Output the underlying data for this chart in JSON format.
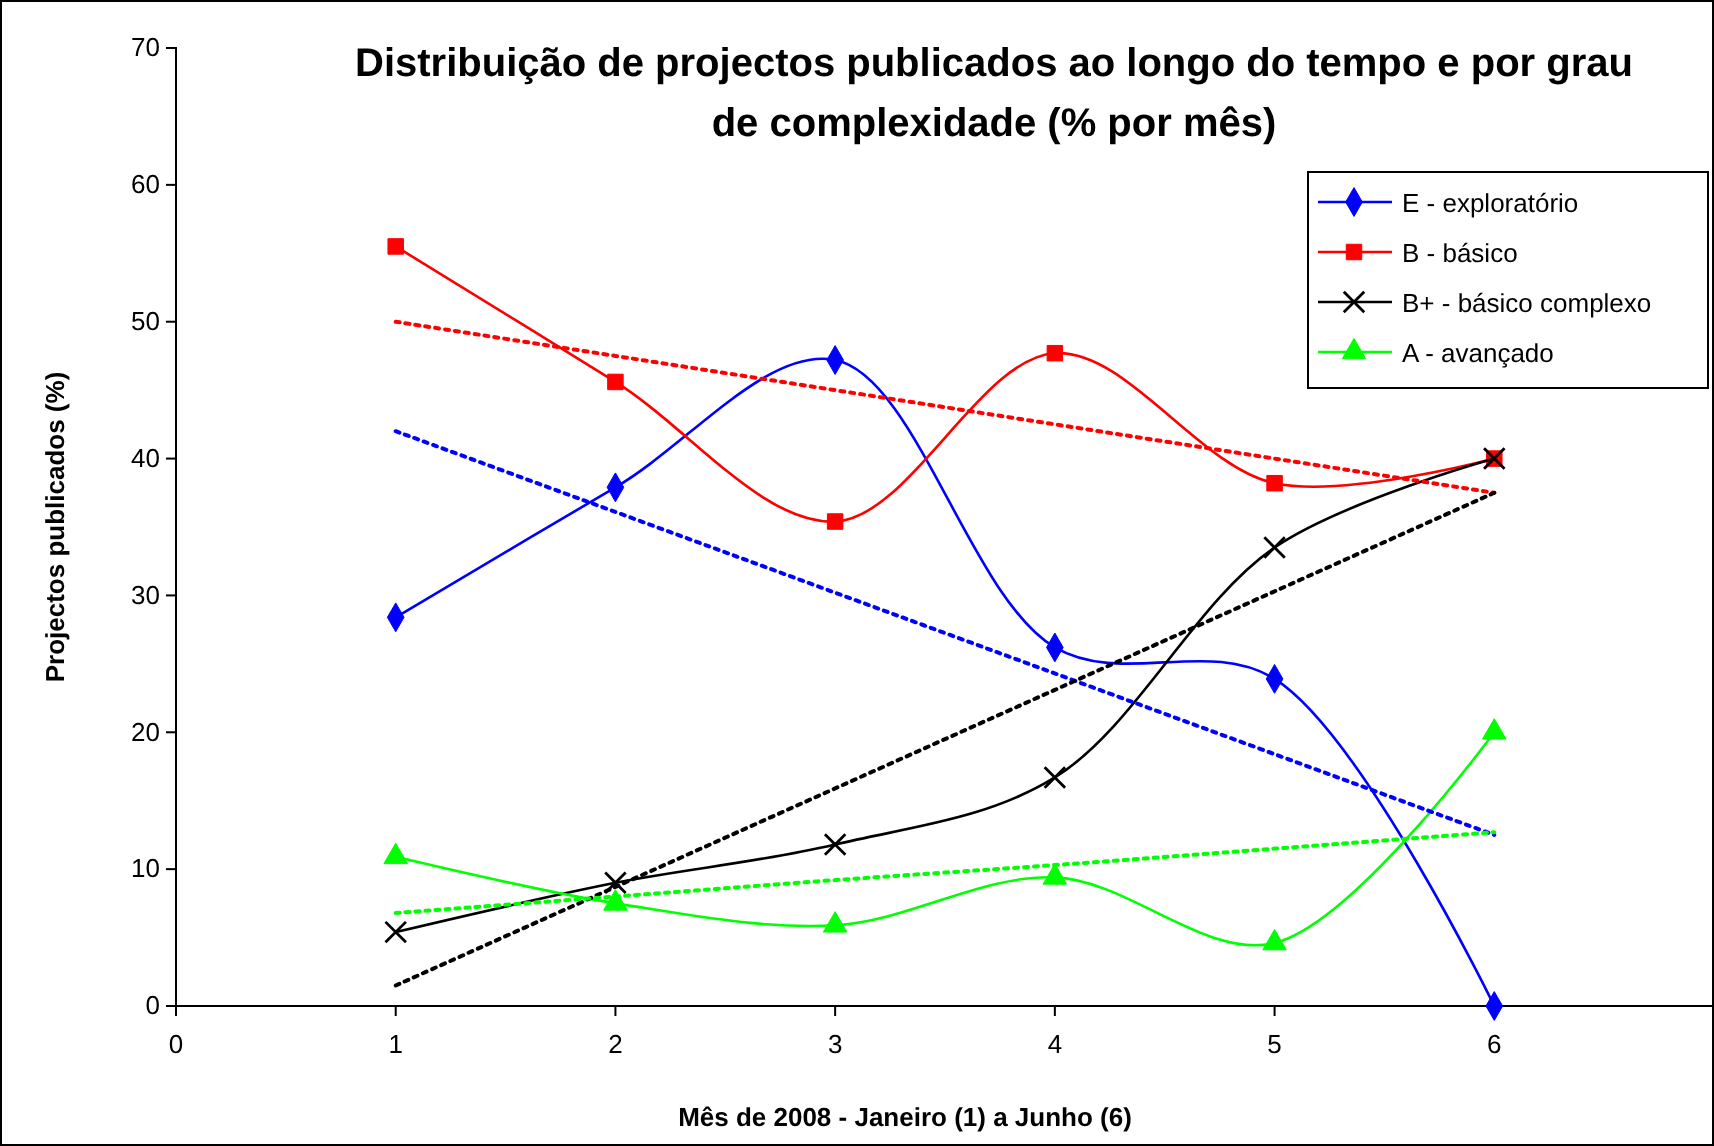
{
  "chart_data": {
    "type": "line",
    "title": "Distribuição de projectos publicados ao longo do tempo e por grau de complexidade (% por mês)",
    "xlabel": "Mês de 2008 - Janeiro (1) a Junho (6)",
    "ylabel": "Projectos publicados (%)",
    "x": [
      1,
      2,
      3,
      4,
      5,
      6
    ],
    "series": [
      {
        "name": "E - exploratório",
        "color": "#0000ff",
        "marker": "diamond",
        "values": [
          28.4,
          37.9,
          47.2,
          26.2,
          23.9,
          0
        ]
      },
      {
        "name": "B - básico",
        "color": "#ff0000",
        "marker": "square",
        "values": [
          55.5,
          45.6,
          35.4,
          47.7,
          38.2,
          40.0
        ]
      },
      {
        "name": "B+ - básico complexo",
        "color": "#000000",
        "marker": "cross",
        "values": [
          5.4,
          9.0,
          11.8,
          16.7,
          33.5,
          40.0
        ]
      },
      {
        "name": "A - avançado",
        "color": "#00ff00",
        "marker": "triangle",
        "values": [
          10.9,
          7.5,
          5.9,
          9.4,
          4.6,
          20.0
        ]
      },
      {
        "type": "line",
        "color": "#0000ff",
        "marker": "none",
        "line_style": "dotted",
        "values": [
          42.0,
          36.1,
          30.2,
          24.3,
          18.4,
          12.5
        ]
      },
      {
        "type": "line",
        "color": "#ff0000",
        "marker": "none",
        "line_style": "dotted",
        "values": [
          50.0,
          47.5,
          45.0,
          42.5,
          40.0,
          37.5
        ]
      },
      {
        "type": "line",
        "color": "#000000",
        "marker": "none",
        "line_style": "dotted",
        "values": [
          1.5,
          8.7,
          15.9,
          23.1,
          30.3,
          37.5
        ]
      },
      {
        "type": "line",
        "color": "#00ff00",
        "marker": "none",
        "line_style": "dotted",
        "values": [
          6.8,
          8.0,
          9.2,
          10.3,
          11.5,
          12.7
        ]
      }
    ],
    "xlim": [
      0,
      7
    ],
    "xticks": [
      0,
      1,
      2,
      3,
      4,
      5,
      6
    ],
    "ylim": [
      0,
      70
    ],
    "yticks": [
      0,
      10,
      20,
      30,
      40,
      50,
      60,
      70
    ],
    "grid": false,
    "legend": "top right",
    "line_style": "solid"
  }
}
